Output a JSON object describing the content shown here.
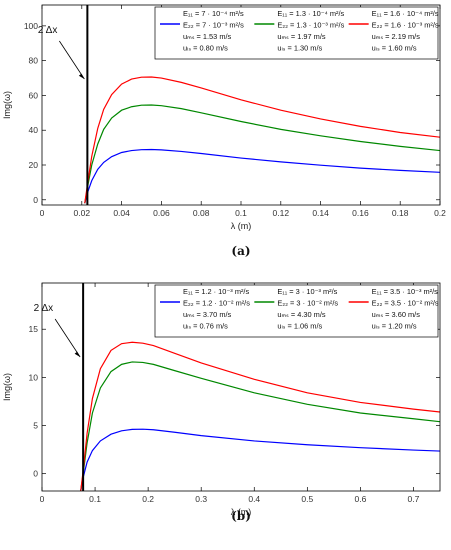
{
  "chart_data": [
    {
      "type": "line",
      "caption": "(a)",
      "xlabel": "λ (m)",
      "ylabel": "Img(ω)",
      "xlim": [
        0,
        0.2
      ],
      "ylim": [
        -3,
        112
      ],
      "xticks": [
        0,
        0.02,
        0.04,
        0.06,
        0.08,
        0.1,
        0.12,
        0.14,
        0.16,
        0.18,
        0.2
      ],
      "xtick_labels": [
        "0",
        "0.02",
        "0.04",
        "0.06",
        "0.08",
        "0.1",
        "0.12",
        "0.14",
        "0.16",
        "0.18",
        "0.2"
      ],
      "yticks": [
        0,
        20,
        40,
        60,
        80,
        100
      ],
      "ytick_labels": [
        "0",
        "20",
        "40",
        "60",
        "80",
        "100"
      ],
      "grid": false,
      "legend": "top-right",
      "cutoff": {
        "x": 0.0228,
        "label": "2 Δx"
      },
      "series": [
        {
          "color": "#0000ff",
          "legend_lines": [
            "E₁₁ = 7 · 10⁻⁴ m²/s",
            "E₂₂ = 7 · 10⁻³ m²/s",
            "uₘₛ = 1.53 m/s",
            "uₗₛ = 0.80 m/s"
          ],
          "x": [
            0.0215,
            0.023,
            0.025,
            0.028,
            0.031,
            0.035,
            0.04,
            0.045,
            0.05,
            0.055,
            0.06,
            0.07,
            0.08,
            0.1,
            0.12,
            0.14,
            0.16,
            0.18,
            0.2
          ],
          "y": [
            -2,
            4.5,
            11,
            17.5,
            21.5,
            24.8,
            27.2,
            28.3,
            28.8,
            28.9,
            28.7,
            27.8,
            26.6,
            24,
            21.8,
            19.9,
            18.2,
            16.9,
            15.8
          ]
        },
        {
          "color": "#008800",
          "legend_lines": [
            "E₁₁ = 1.3 · 10⁻⁴ m²/s",
            "E₂₂ = 1.3 · 10⁻³ m²/s",
            "uₘₛ = 1.97 m/s",
            "uₗₛ = 1.30 m/s"
          ],
          "x": [
            0.0215,
            0.023,
            0.025,
            0.028,
            0.031,
            0.035,
            0.04,
            0.045,
            0.05,
            0.055,
            0.06,
            0.07,
            0.08,
            0.1,
            0.12,
            0.14,
            0.16,
            0.18,
            0.2
          ],
          "y": [
            -2,
            8,
            20,
            32,
            40.5,
            47,
            51.5,
            53.5,
            54.4,
            54.5,
            54.1,
            52.4,
            50,
            45,
            40.5,
            36.8,
            33.5,
            30.7,
            28.3
          ]
        },
        {
          "color": "#ff0000",
          "legend_lines": [
            "E₁₁ = 1.6 · 10⁻⁴ m²/s",
            "E₂₂ = 1.6 · 10⁻³ m²/s",
            "uₘₛ = 2.19 m/s",
            "uₗₛ = 1.60 m/s"
          ],
          "x": [
            0.0215,
            0.023,
            0.025,
            0.028,
            0.031,
            0.035,
            0.04,
            0.045,
            0.05,
            0.055,
            0.06,
            0.07,
            0.08,
            0.1,
            0.12,
            0.14,
            0.16,
            0.18,
            0.2
          ],
          "y": [
            -2,
            10,
            25,
            41,
            52,
            60.5,
            66.5,
            69.4,
            70.5,
            70.6,
            70,
            67.5,
            64.3,
            57.5,
            51.5,
            46.5,
            42.2,
            38.7,
            36
          ]
        }
      ]
    },
    {
      "type": "line",
      "caption": "(b)",
      "xlabel": "λ (m)",
      "ylabel": "Img(ω)",
      "xlim": [
        0,
        0.75
      ],
      "ylim": [
        -1.8,
        19.8
      ],
      "xticks": [
        0,
        0.1,
        0.2,
        0.3,
        0.4,
        0.5,
        0.6,
        0.7
      ],
      "xtick_labels": [
        "0",
        "0.1",
        "0.2",
        "0.3",
        "0.4",
        "0.5",
        "0.6",
        "0.7"
      ],
      "yticks": [
        0,
        5,
        10,
        15
      ],
      "ytick_labels": [
        "0",
        "5",
        "10",
        "15"
      ],
      "grid": false,
      "legend": "top-right",
      "cutoff": {
        "x": 0.0775,
        "label": "2 Δx"
      },
      "series": [
        {
          "color": "#0000ff",
          "legend_lines": [
            "E₁₁ = 1.2 · 10⁻³ m²/s",
            "E₂₂ = 1.2 · 10⁻² m²/s",
            "uₘₛ = 3.70 m/s",
            "uₗₛ = 0.76 m/s"
          ],
          "x": [
            0.073,
            0.078,
            0.085,
            0.095,
            0.11,
            0.13,
            0.15,
            0.17,
            0.19,
            0.21,
            0.25,
            0.3,
            0.4,
            0.5,
            0.6,
            0.7,
            0.75
          ],
          "y": [
            -1.8,
            -0.3,
            1.2,
            2.4,
            3.4,
            4.1,
            4.45,
            4.6,
            4.62,
            4.56,
            4.3,
            3.95,
            3.4,
            3.0,
            2.7,
            2.45,
            2.35
          ]
        },
        {
          "color": "#008800",
          "legend_lines": [
            "E₁₁ = 3 · 10⁻³ m²/s",
            "E₂₂ = 3 · 10⁻² m²/s",
            "uₘₛ = 4.30 m/s",
            "uₗₛ = 1.06 m/s"
          ],
          "x": [
            0.073,
            0.078,
            0.085,
            0.095,
            0.11,
            0.13,
            0.15,
            0.17,
            0.19,
            0.21,
            0.25,
            0.3,
            0.4,
            0.5,
            0.6,
            0.7,
            0.75
          ],
          "y": [
            -1.8,
            0.2,
            3.2,
            6.3,
            8.9,
            10.6,
            11.35,
            11.6,
            11.55,
            11.35,
            10.7,
            9.9,
            8.4,
            7.2,
            6.3,
            5.7,
            5.4
          ]
        },
        {
          "color": "#ff0000",
          "legend_lines": [
            "E₁₁ = 3.5 · 10⁻³ m²/s",
            "E₂₂ = 3.5 · 10⁻² m²/s",
            "uₘₛ = 3.60 m/s",
            "uₗₛ = 1.20 m/s"
          ],
          "x": [
            0.073,
            0.078,
            0.085,
            0.095,
            0.11,
            0.13,
            0.15,
            0.17,
            0.19,
            0.21,
            0.25,
            0.3,
            0.4,
            0.5,
            0.6,
            0.7,
            0.75
          ],
          "y": [
            -1.8,
            0.5,
            4.2,
            7.8,
            10.9,
            12.8,
            13.5,
            13.65,
            13.55,
            13.3,
            12.5,
            11.5,
            9.8,
            8.4,
            7.4,
            6.7,
            6.4
          ]
        }
      ]
    }
  ]
}
